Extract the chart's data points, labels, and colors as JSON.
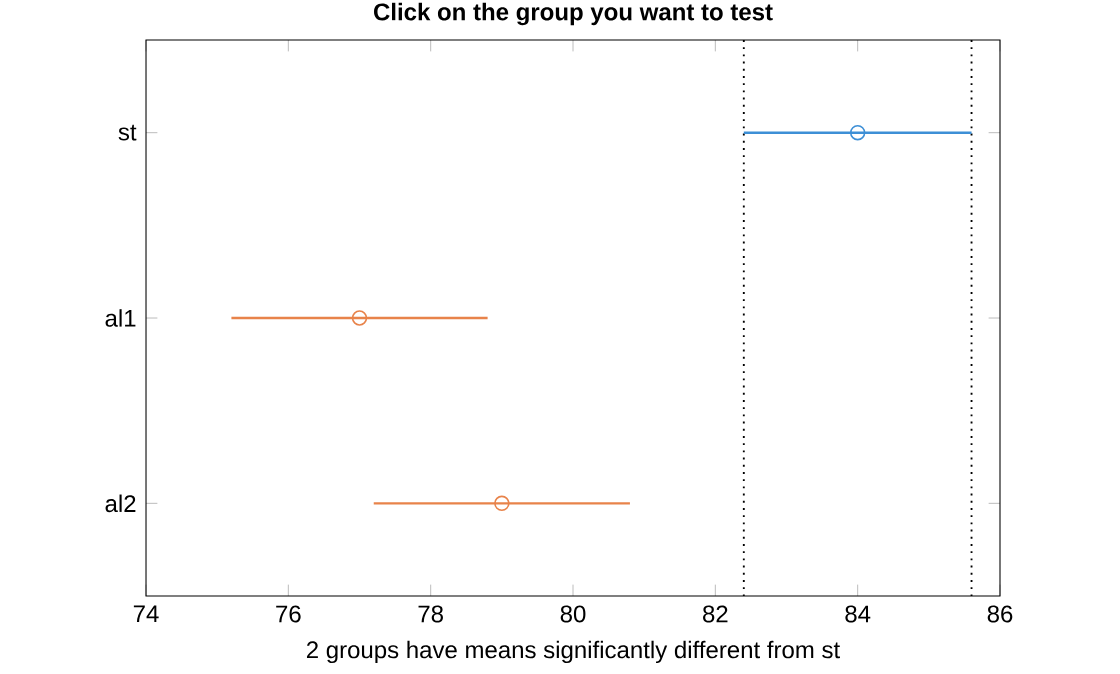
{
  "chart_data": {
    "type": "scatter",
    "orientation": "horizontal",
    "title": "Click on the group you want to test",
    "xlabel": "2 groups have means significantly different from st",
    "categories": [
      "st",
      "al1",
      "al2"
    ],
    "series": [
      {
        "color": "#3d8fd6",
        "values": [
          84,
          null,
          null
        ],
        "errors": [
          [
            82.4,
            85.6
          ],
          null,
          null
        ]
      },
      {
        "color": "#e8834a",
        "values": [
          null,
          77,
          79
        ],
        "errors": [
          null,
          [
            75.2,
            78.8
          ],
          [
            77.2,
            80.8
          ]
        ]
      }
    ],
    "xlim": [
      74,
      86
    ],
    "xticks": [
      74,
      76,
      78,
      80,
      82,
      84,
      86
    ],
    "marker": "circle",
    "grid": false,
    "ref_lines": [
      {
        "axis": "x",
        "value": 82.4,
        "color": "#000000",
        "line_style": "dotted"
      },
      {
        "axis": "x",
        "value": 85.6,
        "color": "#000000",
        "line_style": "dotted"
      }
    ]
  }
}
